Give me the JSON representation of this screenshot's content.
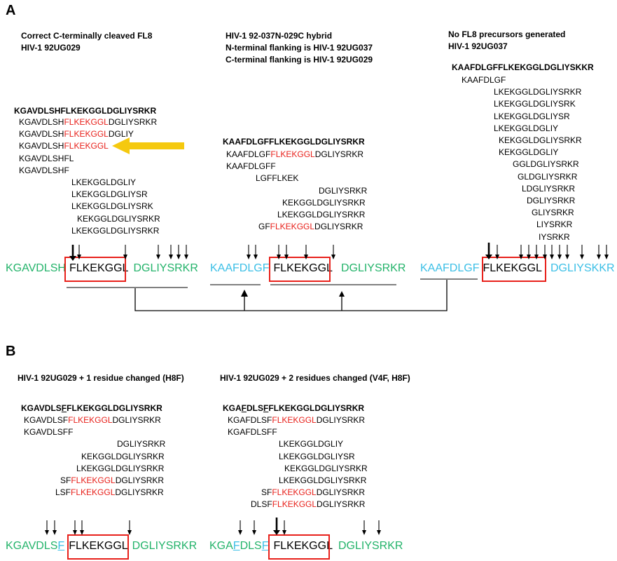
{
  "panels": {
    "a": "A",
    "b": "B"
  },
  "A": {
    "col1": {
      "header": [
        "Correct C-terminally cleaved FL8",
        "HIV-1 92UG029"
      ],
      "full": "KGAVDLSHFLKEKGGLDGLIYSRKR",
      "rows": [
        [
          "KGAVDLSH",
          "FLKEKGGL",
          "DGLIYSRKR"
        ],
        [
          "KGAVDLSH",
          "FLKEKGGL",
          "DGLIY"
        ],
        [
          "KGAVDLSH",
          "FLKEKGGL",
          ""
        ],
        [
          "KGAVDLSHFL",
          "",
          ""
        ],
        [
          "KGAVDLSHF",
          "",
          ""
        ],
        [
          "LKEKGGLDGLIY",
          "",
          ""
        ],
        [
          "LKEKGGLDGLIYSR",
          "",
          ""
        ],
        [
          "LKEKGGLDGLIYSRK",
          "",
          ""
        ],
        [
          "KEKGGLDGLIYSRKR",
          "",
          ""
        ],
        [
          "LKEKGGLDGLIYSRKR",
          "",
          ""
        ]
      ],
      "seq": {
        "n": "KGAVDLSH",
        "core": "FLKEKGGL",
        "c": "DGLIYSRKR"
      }
    },
    "col2": {
      "header": [
        "HIV-1 92-037N-029C hybrid",
        "N-terminal flanking is HIV-1 92UG037",
        "C-terminal flanking is HIV-1 92UG029"
      ],
      "full": "KAAFDLGFFLKEKGGLDGLIYSRKR",
      "rows": [
        [
          "KAAFDLGF",
          "FLKEKGGL",
          "DGLIYSRKR"
        ],
        [
          "KAAFDLGFF",
          "",
          ""
        ],
        [
          "LGFFLKEK",
          "",
          ""
        ],
        [
          "DGLIYSRKR",
          "",
          ""
        ],
        [
          "KEKGGLDGLIYSRKR",
          "",
          ""
        ],
        [
          "LKEKGGLDGLIYSRKR",
          "",
          ""
        ],
        [
          "GF",
          "FLKEKGGL",
          "DGLIYSRKR"
        ]
      ],
      "seq": {
        "n": "KAAFDLGF",
        "core": "FLKEKGGL",
        "c": "DGLIYSRKR"
      }
    },
    "col3": {
      "header": [
        "No FL8 precursors generated",
        "HIV-1 92UG037"
      ],
      "full": "KAAFDLGFFLKEKGGLDGLIYSKKR",
      "rows": [
        "KAAFDLGF",
        "LKEKGGLDGLIYSRKR",
        "LKEKGGLDGLIYSRK",
        "LKEKGGLDGLIYSR",
        "LKEKGGLDGLIY",
        "KEKGGLDGLIYSRKR",
        "KEKGGLDGLIY",
        "GGLDGLIYSRKR",
        "GLDGLIYSRKR",
        "LDGLIYSRKR",
        "DGLIYSRKR",
        "GLIYSRKR",
        "LIYSRKR",
        "IYSRKR"
      ],
      "seq": {
        "n": "KAAFDLGF",
        "core": "FLKEKGGL",
        "c": "DGLIYSKKR"
      }
    }
  },
  "B": {
    "col1": {
      "header": "HIV-1 92UG029 + 1 residue changed (H8F)",
      "full_pre": "KGAVDLS",
      "full_mut": "F",
      "full_post": "FLKEKGGLDGLIYSRKR",
      "rows": [
        [
          "KGAVDLSF",
          "FLKEKGGL",
          "DGLIYSRKR"
        ],
        [
          "KGAVDLSFF",
          "",
          ""
        ],
        [
          "DGLIYSRKR",
          "",
          ""
        ],
        [
          "KEKGGLDGLIYSRKR",
          "",
          ""
        ],
        [
          "LKEKGGLDGLIYSRKR",
          "",
          ""
        ],
        [
          "SF",
          "FLKEKGGL",
          "DGLIYSRKR"
        ],
        [
          "LSF",
          "FLKEKGGL",
          "DGLIYSRKR"
        ]
      ],
      "seq": {
        "n": "KGAVDLS",
        "mut": "F",
        "core": "FLKEKGGL",
        "c": "DGLIYSRKR"
      }
    },
    "col2": {
      "header": "HIV-1 92UG029 + 2 residues changed (V4F, H8F)",
      "full_a": "KGA",
      "full_m1": "F",
      "full_b": "DLS",
      "full_m2": "F",
      "full_c": "FLKEKGGLDGLIYSRKR",
      "rows": [
        [
          "KGAFDLSF",
          "FLKEKGGL",
          "DGLIYSRKR"
        ],
        [
          "KGAFDLSFF",
          "",
          ""
        ],
        [
          "LKEKGGLDGLIY",
          "",
          ""
        ],
        [
          "LKEKGGLDGLIYSR",
          "",
          ""
        ],
        [
          "KEKGGLDGLIYSRKR",
          "",
          ""
        ],
        [
          "LKEKGGLDGLIYSRKR",
          "",
          ""
        ],
        [
          "SF",
          "FLKEKGGL",
          "DGLIYSRKR"
        ],
        [
          "DLSF",
          "FLKEKGGL",
          "DGLIYSRKR"
        ]
      ],
      "seq": {
        "a": "KGA",
        "m1": "F",
        "b": "DLS",
        "m2": "F",
        "core": "FLKEKGGL",
        "c": "DGLIYSRKR"
      }
    }
  },
  "colors": {
    "red": "#e8211b",
    "green": "#23b36a",
    "cyan": "#3bbfe6",
    "arrow_yellow": "#f5c90f"
  }
}
